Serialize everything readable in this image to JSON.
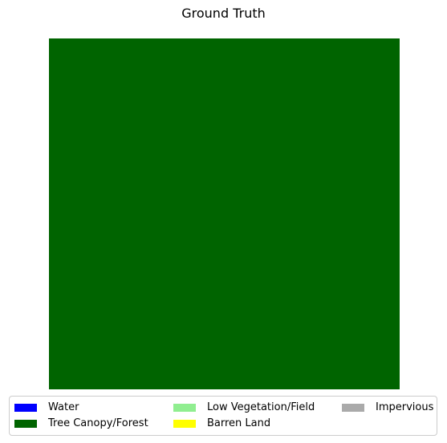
{
  "chart_data": {
    "type": "heatmap",
    "title": "Ground Truth",
    "xlabel": "",
    "ylabel": "",
    "axes_visible": false,
    "grid": false,
    "legend_placement": "bottom-center",
    "legend_columns": 3,
    "classes": [
      {
        "name": "Water",
        "color": "#0000ff"
      },
      {
        "name": "Tree Canopy/Forest",
        "color": "#006400"
      },
      {
        "name": "Low Vegetation/Field",
        "color": "#90ee90"
      },
      {
        "name": "Barren Land",
        "color": "#ffff00"
      },
      {
        "name": "Impervious",
        "color": "#aaaaaa"
      }
    ],
    "grid_rows": 1,
    "grid_cols": 1,
    "values": [
      [
        1
      ]
    ],
    "dominant_class": "Tree Canopy/Forest",
    "coverage_fraction": 1.0
  }
}
